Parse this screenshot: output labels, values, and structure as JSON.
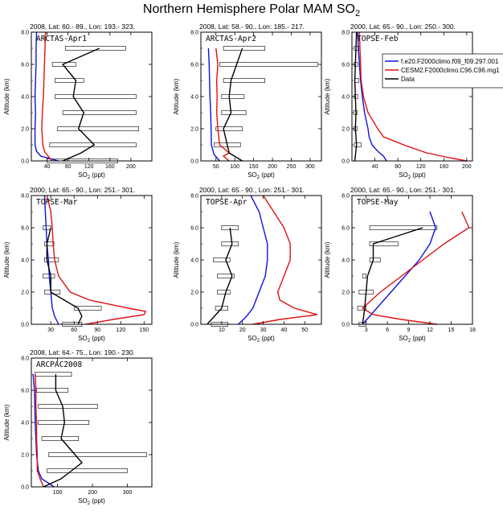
{
  "figure_title": "Northern Hemisphere Polar MAM SO",
  "title_subscript": "2",
  "x_label_prefix": "SO",
  "x_label_sub": "2",
  "x_label_suffix": " (ppt)",
  "y_label": "Altitude (km)",
  "colors": {
    "model1": "#1010e0",
    "model2": "#e01010",
    "obs": "#000000"
  },
  "legend": [
    {
      "key": "model1",
      "label": "f.e20.F2000climo.f09_f09.297.001"
    },
    {
      "key": "model2",
      "label": "CESM2.F2000climo.C96.C96.mg1"
    },
    {
      "key": "obs",
      "label": "Data"
    }
  ],
  "chart_data": [
    {
      "type": "line",
      "panel": "ARCTAS-Apr1",
      "subtitle": "2008, Lat: 60.- 89., Lon: 193.- 323.",
      "xlim": [
        10,
        240
      ],
      "ylim": [
        0,
        8
      ],
      "xticks": [
        40,
        80,
        120,
        160,
        200
      ],
      "xtick_labels": [
        "40",
        "80",
        "120",
        "160",
        "200"
      ],
      "yticks": [
        0,
        2,
        4,
        6,
        8
      ],
      "ytick_labels": [
        "0.0",
        "2.0",
        "4.0",
        "6.0",
        "8.0"
      ],
      "series": [
        {
          "name": "model1",
          "alt": [
            0,
            0.3,
            0.6,
            1,
            2,
            3,
            4,
            5,
            6,
            7,
            8
          ],
          "x": [
            62,
            28,
            20,
            17,
            17,
            18,
            17,
            18,
            19,
            19,
            20
          ]
        },
        {
          "name": "model2",
          "alt": [
            0,
            0.3,
            0.6,
            1,
            2,
            3,
            4,
            5,
            6,
            7,
            8
          ],
          "x": [
            50,
            42,
            35,
            32,
            30,
            31,
            33,
            34,
            35,
            36,
            37
          ]
        },
        {
          "name": "Data",
          "alt": [
            0,
            0.5,
            1,
            2,
            3,
            4,
            5,
            6,
            7
          ],
          "x": [
            70,
            105,
            130,
            100,
            110,
            90,
            95,
            70,
            140
          ]
        }
      ],
      "ranges": [
        {
          "alt": 7,
          "lo": 75,
          "hi": 190
        },
        {
          "alt": 6,
          "lo": 50,
          "hi": 95
        },
        {
          "alt": 5,
          "lo": 55,
          "hi": 110
        },
        {
          "alt": 4,
          "lo": 55,
          "hi": 210
        },
        {
          "alt": 3,
          "lo": 70,
          "hi": 210
        },
        {
          "alt": 2,
          "lo": 60,
          "hi": 215
        },
        {
          "alt": 1,
          "lo": 45,
          "hi": 210
        },
        {
          "alt": 0,
          "lo": 40,
          "hi": 175
        }
      ]
    },
    {
      "type": "line",
      "panel": "ARCTAS-Apr2",
      "subtitle": "2008, Lat: 58.- 90., Lon: 185.- 217.",
      "xlim": [
        10,
        330
      ],
      "ylim": [
        0,
        8
      ],
      "xticks": [
        50,
        100,
        150,
        200,
        250,
        300
      ],
      "xtick_labels": [
        "50",
        "100",
        "150",
        "200",
        "250",
        "300"
      ],
      "yticks": [
        0,
        2,
        4,
        6,
        8
      ],
      "ytick_labels": [
        "0.0",
        "2.0",
        "4.0",
        "6.0",
        "8.0"
      ],
      "series": [
        {
          "name": "model1",
          "alt": [
            0,
            0.4,
            1,
            2,
            3,
            4,
            5,
            6,
            7
          ],
          "x": [
            60,
            45,
            38,
            37,
            36,
            34,
            33,
            32,
            30
          ]
        },
        {
          "name": "model2",
          "alt": [
            0,
            0.3,
            0.5,
            1,
            2,
            3,
            4,
            5,
            6,
            7
          ],
          "x": [
            85,
            70,
            85,
            60,
            55,
            52,
            53,
            52,
            55,
            50
          ]
        },
        {
          "name": "Data",
          "alt": [
            0,
            0.5,
            1,
            2,
            3,
            4,
            5,
            6,
            7
          ],
          "x": [
            120,
            85,
            80,
            70,
            90,
            85,
            90,
            105,
            120
          ]
        }
      ],
      "ranges": [
        {
          "alt": 7,
          "lo": 70,
          "hi": 180
        },
        {
          "alt": 6,
          "lo": 60,
          "hi": 320
        },
        {
          "alt": 5,
          "lo": 70,
          "hi": 180
        },
        {
          "alt": 4,
          "lo": 65,
          "hi": 125
        },
        {
          "alt": 3,
          "lo": 65,
          "hi": 130
        },
        {
          "alt": 2,
          "lo": 50,
          "hi": 120
        },
        {
          "alt": 1,
          "lo": 45,
          "hi": 115
        }
      ]
    },
    {
      "type": "line",
      "panel": "TOPSE-Feb",
      "subtitle": "2000, Lat: 65.- 90., Lon: 250.- 300.",
      "xlim": [
        0,
        210
      ],
      "ylim": [
        0,
        8
      ],
      "xticks": [
        40,
        80,
        120,
        160,
        200
      ],
      "xtick_labels": [
        "40",
        "80",
        "120",
        "160",
        "200"
      ],
      "yticks": [
        0,
        2,
        4,
        6,
        8
      ],
      "ytick_labels": [
        "0.0",
        "2.0",
        "4.0",
        "6.0",
        "8.0"
      ],
      "series": [
        {
          "name": "model1",
          "alt": [
            0,
            0.3,
            0.6,
            1,
            1.5,
            2,
            3,
            4,
            5,
            6,
            7,
            8
          ],
          "x": [
            60,
            55,
            45,
            35,
            30,
            28,
            22,
            18,
            15,
            13,
            11,
            10
          ]
        },
        {
          "name": "model2",
          "alt": [
            0,
            0.2,
            0.5,
            1,
            1.5,
            2,
            3,
            4,
            5,
            6,
            7,
            8
          ],
          "x": [
            200,
            170,
            130,
            90,
            55,
            45,
            28,
            20,
            16,
            15,
            14,
            13
          ]
        },
        {
          "name": "Data",
          "alt": [
            0,
            1,
            2,
            3,
            4,
            5,
            6,
            7,
            8
          ],
          "x": [
            5,
            8,
            6,
            7,
            6,
            5,
            6,
            7,
            8
          ]
        }
      ],
      "ranges": [
        {
          "alt": 7,
          "lo": 4,
          "hi": 12
        },
        {
          "alt": 6,
          "lo": 4,
          "hi": 10
        },
        {
          "alt": 5,
          "lo": 5,
          "hi": 12
        },
        {
          "alt": 4,
          "lo": 4,
          "hi": 10
        },
        {
          "alt": 3,
          "lo": 3,
          "hi": 9
        },
        {
          "alt": 2,
          "lo": 3,
          "hi": 9
        },
        {
          "alt": 1,
          "lo": 4,
          "hi": 16
        }
      ]
    },
    {
      "type": "line",
      "panel": "TOPSE-Mar",
      "subtitle": "2000, Lat: 65.- 90., Lon: 251.- 301.",
      "xlim": [
        5,
        160
      ],
      "ylim": [
        0,
        8
      ],
      "xticks": [
        30,
        60,
        90,
        120,
        150
      ],
      "xtick_labels": [
        "30",
        "60",
        "90",
        "120",
        "150"
      ],
      "yticks": [
        0,
        2,
        4,
        6,
        8
      ],
      "ytick_labels": [
        "0.0",
        "2.0",
        "4.0",
        "6.0",
        "8.0"
      ],
      "series": [
        {
          "name": "model1",
          "alt": [
            0,
            0.5,
            1,
            2,
            3,
            4,
            5,
            6,
            7,
            8
          ],
          "x": [
            40,
            35,
            32,
            30,
            28,
            27,
            25,
            24,
            23,
            22
          ]
        },
        {
          "name": "model2",
          "alt": [
            0,
            0.3,
            0.6,
            0.8,
            1,
            1.5,
            2,
            3,
            4,
            5,
            6,
            7,
            8
          ],
          "x": [
            75,
            110,
            150,
            152,
            130,
            80,
            55,
            40,
            35,
            33,
            32,
            30,
            25
          ]
        },
        {
          "name": "Data",
          "alt": [
            0,
            0.5,
            1,
            2,
            3,
            4,
            5,
            6
          ],
          "x": [
            65,
            70,
            65,
            30,
            30,
            25,
            25,
            30
          ]
        }
      ],
      "ranges": [
        {
          "alt": 6,
          "lo": 20,
          "hi": 30
        },
        {
          "alt": 5,
          "lo": 22,
          "hi": 34
        },
        {
          "alt": 4,
          "lo": 22,
          "hi": 40
        },
        {
          "alt": 3,
          "lo": 20,
          "hi": 35
        },
        {
          "alt": 2,
          "lo": 22,
          "hi": 42
        },
        {
          "alt": 1,
          "lo": 60,
          "hi": 95
        },
        {
          "alt": 0,
          "lo": 45,
          "hi": 70
        }
      ]
    },
    {
      "type": "line",
      "panel": "TOPSE-Apr",
      "subtitle": "2000, Lat: 65.- 90., Lon: 251.- 301.",
      "xlim": [
        0,
        58
      ],
      "ylim": [
        0,
        8
      ],
      "xticks": [
        10,
        20,
        30,
        40,
        50
      ],
      "xtick_labels": [
        "10",
        "20",
        "30",
        "40",
        "50"
      ],
      "yticks": [
        0,
        2,
        4,
        6,
        8
      ],
      "ytick_labels": [
        "0.0",
        "2.0",
        "4.0",
        "6.0",
        "8.0"
      ],
      "series": [
        {
          "name": "model1",
          "alt": [
            0,
            0.5,
            1,
            2,
            3,
            4,
            5,
            6,
            7,
            8
          ],
          "x": [
            18,
            22,
            25,
            28,
            31,
            32,
            32,
            30,
            28,
            24
          ]
        },
        {
          "name": "model2",
          "alt": [
            0,
            0.3,
            0.6,
            1,
            1.5,
            2,
            3,
            4,
            5,
            6,
            7,
            8
          ],
          "x": [
            25,
            38,
            56,
            45,
            38,
            37,
            40,
            43,
            43,
            40,
            35,
            30
          ]
        },
        {
          "name": "Data",
          "alt": [
            0,
            1,
            2,
            3,
            4,
            5,
            6
          ],
          "x": [
            3,
            10,
            12,
            15,
            12,
            15,
            14
          ]
        }
      ],
      "ranges": [
        {
          "alt": 6,
          "lo": 10,
          "hi": 18
        },
        {
          "alt": 5,
          "lo": 10,
          "hi": 18
        },
        {
          "alt": 4,
          "lo": 6,
          "hi": 14
        },
        {
          "alt": 3,
          "lo": 8,
          "hi": 16
        },
        {
          "alt": 2,
          "lo": 8,
          "hi": 14
        },
        {
          "alt": 1,
          "lo": 7,
          "hi": 13
        },
        {
          "alt": 0,
          "lo": 5,
          "hi": 13
        }
      ]
    },
    {
      "type": "line",
      "panel": "TOPSE-May",
      "subtitle": "2000, Lat: 65.- 90., Lon: 251.- 301.",
      "xlim": [
        1,
        18
      ],
      "ylim": [
        0,
        8
      ],
      "xticks": [
        3,
        6,
        9,
        12,
        15,
        18
      ],
      "xtick_labels": [
        "3",
        "6",
        "9",
        "12",
        "15",
        "18"
      ],
      "yticks": [
        0,
        2,
        4,
        6,
        8
      ],
      "ytick_labels": [
        "0.0",
        "2.0",
        "4.0",
        "6.0",
        "8.0"
      ],
      "series": [
        {
          "name": "model1",
          "alt": [
            0,
            0.5,
            1,
            2,
            3,
            4,
            5,
            6,
            7
          ],
          "x": [
            2.5,
            3.5,
            4.5,
            6.5,
            8.5,
            10.5,
            12,
            12.8,
            12
          ]
        },
        {
          "name": "model2",
          "alt": [
            0,
            0.3,
            0.6,
            1,
            2,
            3,
            4,
            5,
            6,
            7
          ],
          "x": [
            13,
            8,
            4,
            2.5,
            5,
            8,
            11,
            14,
            17.5,
            16.5
          ]
        },
        {
          "name": "Data",
          "alt": [
            0,
            1,
            2,
            3,
            4,
            5,
            6
          ],
          "x": [
            2.5,
            2.8,
            3,
            3.2,
            4,
            4,
            11
          ]
        }
      ],
      "ranges": [
        {
          "alt": 6,
          "lo": 3.5,
          "hi": 13
        },
        {
          "alt": 5,
          "lo": 3.5,
          "hi": 7.5
        },
        {
          "alt": 4,
          "lo": 3.5,
          "hi": 5
        },
        {
          "alt": 3,
          "lo": 2.5,
          "hi": 3
        },
        {
          "alt": 2,
          "lo": 2,
          "hi": 4
        },
        {
          "alt": 1,
          "lo": 1.8,
          "hi": 3
        },
        {
          "alt": 0,
          "lo": 2,
          "hi": 3
        }
      ]
    },
    {
      "type": "line",
      "panel": "ARCPAC2008",
      "subtitle": "2008, Lat: 64.- 75., Lon: 190.- 230.",
      "xlim": [
        25,
        370
      ],
      "ylim": [
        0,
        8
      ],
      "xticks": [
        100,
        200,
        300
      ],
      "xtick_labels": [
        "100",
        "200",
        "300"
      ],
      "yticks": [
        0,
        2,
        4,
        6,
        8
      ],
      "ytick_labels": [
        "0.0",
        "2.0",
        "4.0",
        "6.0",
        "8.0"
      ],
      "series": [
        {
          "name": "model1",
          "alt": [
            0,
            0.5,
            1,
            2,
            3,
            4,
            5,
            6,
            7
          ],
          "x": [
            90,
            55,
            45,
            40,
            38,
            36,
            35,
            34,
            30
          ]
        },
        {
          "name": "model2",
          "alt": [
            0,
            0.5,
            1,
            2,
            3,
            4,
            5,
            6,
            7
          ],
          "x": [
            60,
            50,
            42,
            42,
            40,
            40,
            38,
            38,
            36
          ]
        },
        {
          "name": "Data",
          "alt": [
            0,
            0.5,
            1,
            1.5,
            2,
            3,
            4,
            5,
            6,
            7
          ],
          "x": [
            60,
            110,
            140,
            170,
            150,
            110,
            120,
            115,
            95,
            95
          ]
        }
      ],
      "ranges": [
        {
          "alt": 7,
          "lo": 35,
          "hi": 140
        },
        {
          "alt": 6,
          "lo": 40,
          "hi": 130
        },
        {
          "alt": 5,
          "lo": 45,
          "hi": 215
        },
        {
          "alt": 4,
          "lo": 45,
          "hi": 190
        },
        {
          "alt": 3,
          "lo": 55,
          "hi": 160
        },
        {
          "alt": 2,
          "lo": 75,
          "hi": 355
        },
        {
          "alt": 1,
          "lo": 70,
          "hi": 300
        }
      ]
    }
  ]
}
